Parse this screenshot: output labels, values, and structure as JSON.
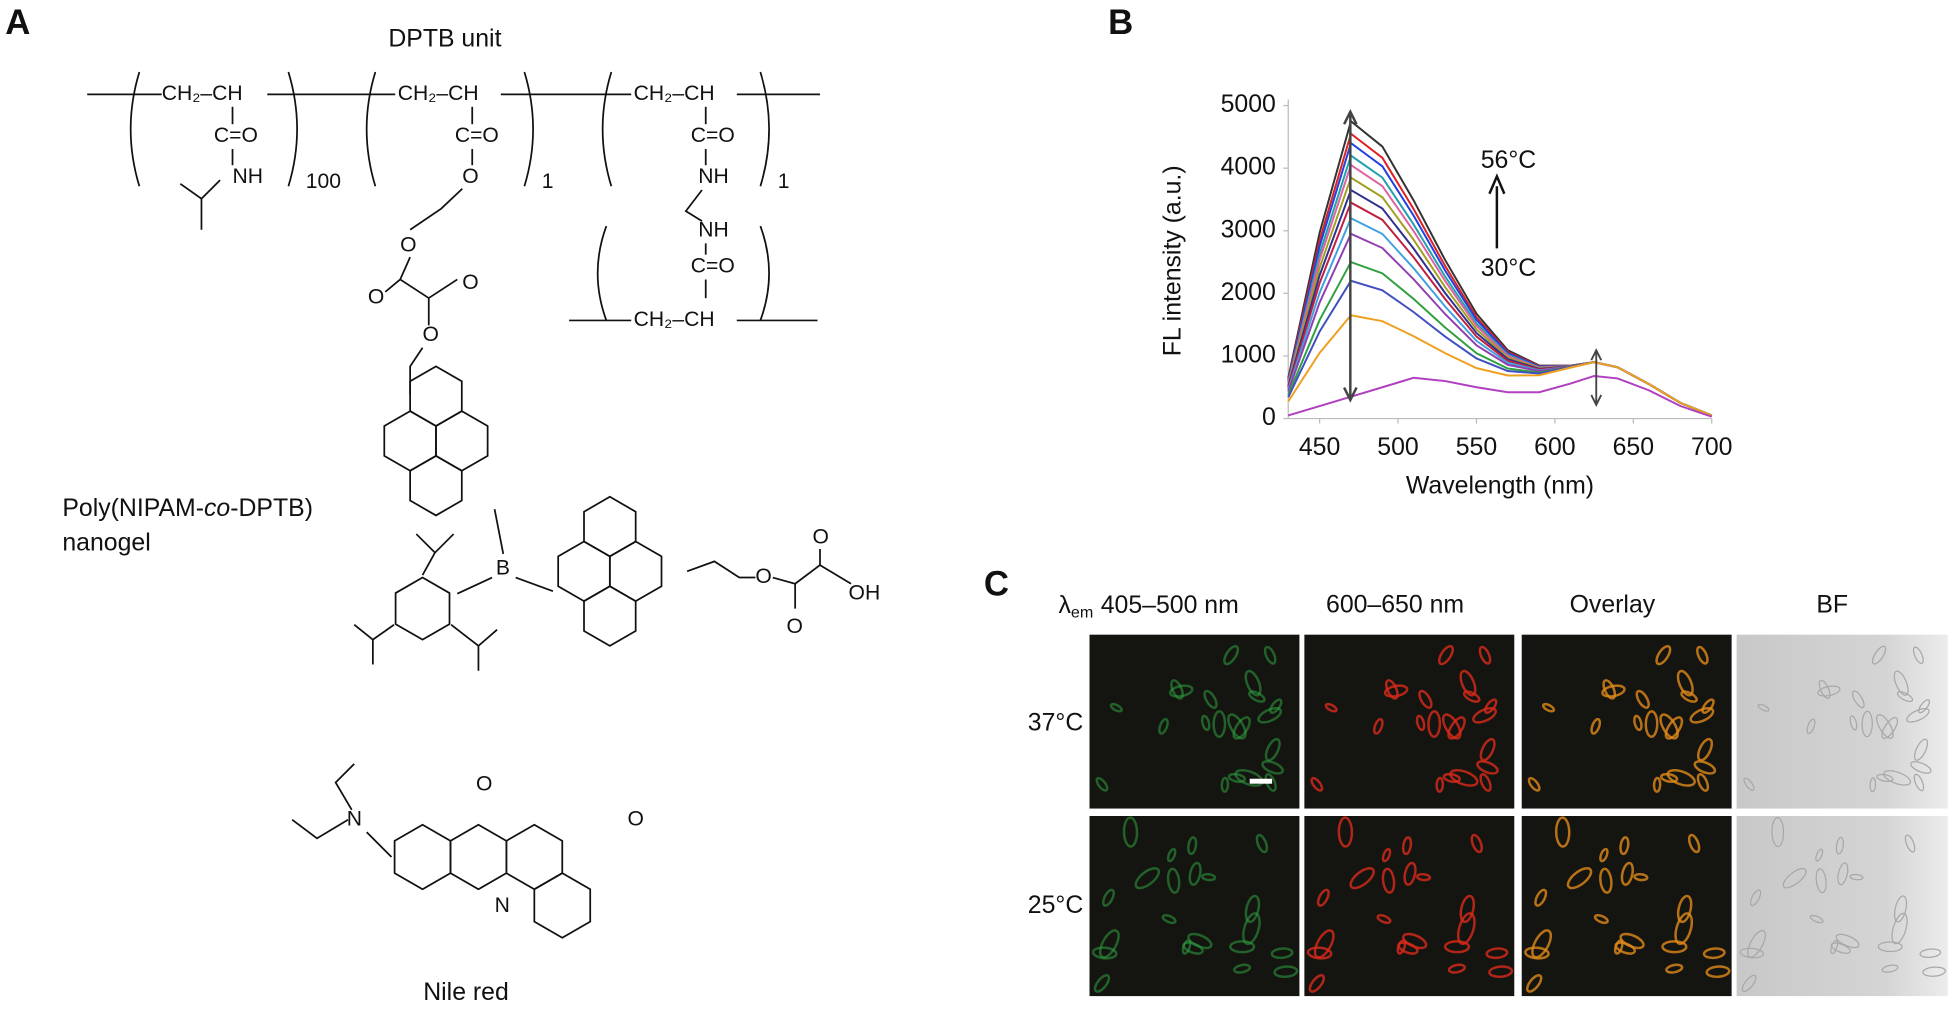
{
  "panel_labels": {
    "a": "A",
    "b": "B",
    "c": "C"
  },
  "structure": {
    "title": "DPTB unit",
    "ch2_ch": "CH₂–CH",
    "co": "C=O",
    "nh": "NH",
    "o": "O",
    "counts": [
      "100",
      "1",
      "1"
    ],
    "boron": "B",
    "oh": "OH",
    "n": "N",
    "nanogel": [
      "Poly(NIPAM-",
      "co",
      "-DPTB)",
      "nanogel"
    ],
    "nile_red": "Nile red"
  },
  "chart_data": {
    "type": "line",
    "x_label": "Wavelength (nm)",
    "y_label": "FL intensity (a.u.)",
    "annotations": [
      "56°C",
      "30°C"
    ],
    "x": [
      430,
      450,
      470,
      490,
      510,
      530,
      550,
      570,
      590,
      610,
      625,
      640,
      660,
      680,
      700
    ],
    "xlim": [
      430,
      700
    ],
    "xticks": [
      450,
      500,
      550,
      600,
      650,
      700
    ],
    "ylim": [
      0,
      5000
    ],
    "yticks": [
      0,
      1000,
      2000,
      3000,
      4000,
      5000
    ],
    "series": [
      {
        "color": "#333333",
        "values": [
          646,
          2971,
          4750,
          4345,
          3485,
          2534,
          1674,
          1092,
          848,
          846,
          900,
          820,
          550,
          250,
          50
        ]
      },
      {
        "color": "#e02020",
        "values": [
          622,
          2847,
          4550,
          4165,
          3345,
          2438,
          1618,
          1066,
          838,
          844,
          900,
          820,
          550,
          250,
          50
        ]
      },
      {
        "color": "#2040e0",
        "values": [
          604,
          2754,
          4400,
          4030,
          3240,
          2366,
          1576,
          1046,
          830,
          842,
          900,
          820,
          550,
          250,
          50
        ]
      },
      {
        "color": "#20a0b0",
        "values": [
          580,
          2630,
          4200,
          3850,
          3100,
          2270,
          1520,
          1020,
          820,
          840,
          900,
          820,
          550,
          250,
          50
        ]
      },
      {
        "color": "#e060a0",
        "values": [
          562,
          2537,
          4050,
          3715,
          2995,
          2198,
          1478,
          1001,
          813,
          838,
          900,
          820,
          550,
          250,
          50
        ]
      },
      {
        "color": "#a0a020",
        "values": [
          538,
          2413,
          3850,
          3535,
          2855,
          2102,
          1422,
          975,
          803,
          837,
          900,
          820,
          550,
          250,
          50
        ]
      },
      {
        "color": "#303090",
        "values": [
          514,
          2289,
          3650,
          3355,
          2715,
          2006,
          1366,
          949,
          793,
          835,
          900,
          820,
          550,
          250,
          50
        ]
      },
      {
        "color": "#c02040",
        "values": [
          490,
          2165,
          3450,
          3175,
          2575,
          1910,
          1310,
          923,
          783,
          833,
          900,
          820,
          550,
          250,
          50
        ]
      },
      {
        "color": "#40a0e0",
        "values": [
          460,
          2010,
          3200,
          2950,
          2400,
          1790,
          1240,
          890,
          770,
          830,
          900,
          820,
          550,
          250,
          50
        ]
      },
      {
        "color": "#9040b0",
        "values": [
          430,
          1855,
          2950,
          2725,
          2225,
          1670,
          1170,
          858,
          758,
          828,
          900,
          820,
          550,
          250,
          50
        ]
      },
      {
        "color": "#30a040",
        "values": [
          376,
          1576,
          2500,
          2320,
          1910,
          1454,
          1044,
          799,
          735,
          823,
          900,
          820,
          550,
          250,
          50
        ]
      },
      {
        "color": "#4050c0",
        "values": [
          340,
          1390,
          2200,
          2050,
          1700,
          1310,
          960,
          760,
          720,
          820,
          900,
          820,
          550,
          250,
          50
        ]
      },
      {
        "color": "#f0a020",
        "values": [
          274,
          1049,
          1650,
          1555,
          1315,
          1046,
          806,
          689,
          693,
          814,
          900,
          820,
          550,
          250,
          50
        ]
      },
      {
        "color": "#b040c0",
        "values": [
          50,
          200,
          350,
          500,
          650,
          600,
          500,
          420,
          420,
          560,
          680,
          640,
          450,
          200,
          30
        ]
      }
    ]
  },
  "micrographs": {
    "lambda": "λ",
    "em": "em",
    "columns": [
      "405–500 nm",
      "600–650 nm",
      "Overlay",
      "BF"
    ],
    "rows": [
      "37°C",
      "25°C"
    ]
  }
}
